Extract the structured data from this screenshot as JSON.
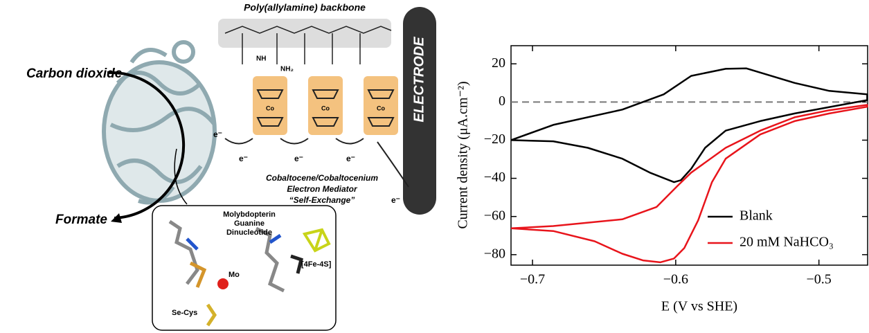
{
  "diagram": {
    "backbone": "Poly(allylamine) backbone",
    "electrode": "ELECTRODE",
    "substrate": "Carbon dioxide",
    "product": "Formate",
    "mediator": [
      "Cobaltocene/Cobaltocenium",
      "Electron Mediator",
      "“Self-Exchange”"
    ],
    "electron": "e⁻",
    "cobalt": "Co",
    "amide": "NH",
    "amine": "NH₂",
    "cofactor": [
      "Molybdopterin",
      "Guanine",
      "Dinucleotide"
    ],
    "cluster": "[4Fe-4S]",
    "metal": "Mo",
    "residue": "Se-Cys"
  },
  "chart_data": {
    "type": "line",
    "xlabel": "E (V vs SHE)",
    "ylabel": "Current density (μA.cm⁻²)",
    "xlim": [
      -0.715,
      -0.466
    ],
    "ylim": [
      -85.5,
      29.5
    ],
    "xticks": [
      {
        "value": -0.7,
        "label": "−0.7"
      },
      {
        "value": -0.6,
        "label": "−0.6"
      },
      {
        "value": -0.5,
        "label": "−0.5"
      }
    ],
    "yticks": [
      20,
      0,
      {
        "value": -20,
        "label": "−20"
      },
      {
        "value": -40,
        "label": "−40"
      },
      {
        "value": -60,
        "label": "−60"
      },
      {
        "value": -80,
        "label": "−80"
      }
    ],
    "hline": 0,
    "legend": "lower right",
    "series": [
      {
        "name": "Blank",
        "color": "#000000",
        "x": [
          -0.715,
          -0.6855,
          -0.6373,
          -0.6084,
          -0.5892,
          -0.5651,
          -0.5506,
          -0.5169,
          -0.4928,
          -0.4663,
          -0.4663,
          -0.5169,
          -0.541,
          -0.5651,
          -0.5795,
          -0.5892,
          -0.5964,
          -0.6012,
          -0.6181,
          -0.6373,
          -0.6614,
          -0.6855,
          -0.715
        ],
        "values": [
          -20,
          -12,
          -4,
          4,
          13.7,
          17.4,
          17.6,
          10,
          5.8,
          4,
          1,
          -6,
          -10,
          -15,
          -24,
          -35,
          -41,
          -42,
          -37,
          -29.7,
          -24,
          -20.6,
          -20
        ]
      },
      {
        "name": "20 mM NaHCO₃",
        "color": "#e8141b",
        "x": [
          -0.715,
          -0.6855,
          -0.6373,
          -0.6133,
          -0.5988,
          -0.5892,
          -0.5651,
          -0.541,
          -0.5169,
          -0.4928,
          -0.4663,
          -0.4663,
          -0.4928,
          -0.5169,
          -0.541,
          -0.5651,
          -0.5747,
          -0.5843,
          -0.594,
          -0.6012,
          -0.6108,
          -0.6229,
          -0.6373,
          -0.6566,
          -0.6855,
          -0.715
        ],
        "values": [
          -66.2,
          -65,
          -61.5,
          -55,
          -44,
          -37,
          -24,
          -15,
          -8,
          -4.3,
          -1.5,
          -2.5,
          -6,
          -10,
          -17,
          -29.7,
          -42,
          -62,
          -76.5,
          -82,
          -84,
          -83,
          -79.5,
          -73,
          -67.6,
          -66.2
        ]
      }
    ]
  }
}
